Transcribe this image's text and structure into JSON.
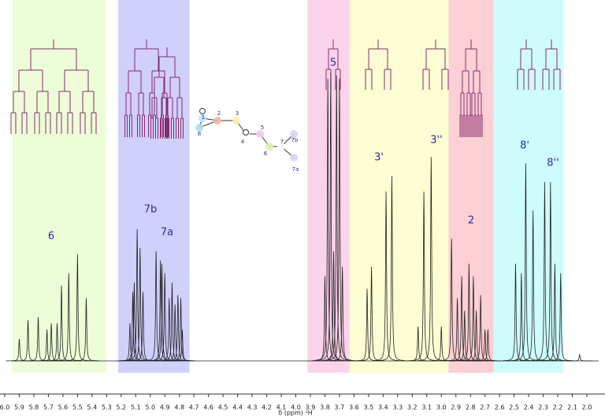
{
  "chart_data": {
    "type": "spectrum",
    "x_label": "δ (ppm) ¹H",
    "xlim": [
      6.0,
      2.0
    ],
    "ylim": [
      0,
      1
    ],
    "xticks": [
      {
        "value": 6.0,
        "label": "6.0"
      },
      5.9,
      5.8,
      5.7,
      5.6,
      5.5,
      5.4,
      5.3,
      5.2,
      5.1,
      {
        "value": 5.0,
        "label": "5.0"
      },
      4.9,
      4.8,
      4.7,
      4.6,
      4.5,
      4.4,
      4.3,
      4.2,
      4.1,
      {
        "value": 4.0,
        "label": "4.0"
      },
      3.9,
      3.8,
      3.7,
      3.6,
      3.5,
      3.4,
      3.3,
      3.2,
      3.1,
      {
        "value": 3.0,
        "label": "3.0"
      },
      2.9,
      2.8,
      2.7,
      2.6,
      2.5,
      2.4,
      2.3,
      2.2,
      2.1,
      {
        "value": 2.0,
        "label": "2.0"
      }
    ],
    "color": "#222222",
    "x": [
      5.9,
      5.84,
      5.77,
      5.71,
      5.68,
      5.64,
      5.61,
      5.56,
      5.5,
      5.44,
      5.14,
      5.12,
      5.11,
      5.09,
      5.07,
      5.05,
      4.96,
      4.93,
      4.92,
      4.9,
      4.87,
      4.85,
      4.83,
      4.81,
      4.79,
      4.78,
      3.8,
      3.78,
      3.76,
      3.74,
      3.72,
      3.7,
      3.68,
      3.51,
      3.48,
      3.38,
      3.34,
      3.16,
      3.12,
      3.07,
      3.0,
      2.93,
      2.89,
      2.86,
      2.84,
      2.81,
      2.78,
      2.76,
      2.73,
      2.7,
      2.68,
      2.49,
      2.45,
      2.42,
      2.37,
      2.29,
      2.25,
      2.22,
      2.18,
      2.05
    ],
    "values": [
      0.07,
      0.13,
      0.14,
      0.1,
      0.12,
      0.12,
      0.24,
      0.28,
      0.34,
      0.2,
      0.12,
      0.22,
      0.25,
      0.42,
      0.36,
      0.22,
      0.35,
      0.32,
      0.31,
      0.28,
      0.2,
      0.25,
      0.18,
      0.21,
      0.2,
      0.1,
      0.27,
      0.9,
      0.92,
      0.35,
      0.91,
      0.9,
      0.3,
      0.23,
      0.3,
      0.54,
      0.59,
      0.11,
      0.54,
      0.65,
      0.11,
      0.39,
      0.2,
      0.27,
      0.16,
      0.31,
      0.27,
      0.16,
      0.21,
      0.1,
      0.1,
      0.31,
      0.28,
      0.63,
      0.48,
      0.57,
      0.57,
      0.31,
      0.28,
      0.02
    ],
    "regions": [
      {
        "range": [
          5.95,
          5.3
        ],
        "color": "#ecfdd8"
      },
      {
        "range": [
          5.22,
          4.73
        ],
        "color": "#cfd0fb"
      },
      {
        "range": [
          3.92,
          3.63
        ],
        "color": "#fbd3ea"
      },
      {
        "range": [
          3.63,
          2.95
        ],
        "color": "#fcfdd3"
      },
      {
        "range": [
          2.95,
          2.64
        ],
        "color": "#fcd0d4"
      },
      {
        "range": [
          2.64,
          2.16
        ],
        "color": "#cdfcfb"
      }
    ],
    "annotations": [
      "6",
      "7b",
      "7a",
      "5",
      "3'",
      "3''",
      "2",
      "8'",
      "8''"
    ],
    "molecule_labels": [
      "1",
      "2",
      "3",
      "4",
      "5",
      "6",
      "7",
      "7b",
      "7a",
      "8"
    ]
  }
}
